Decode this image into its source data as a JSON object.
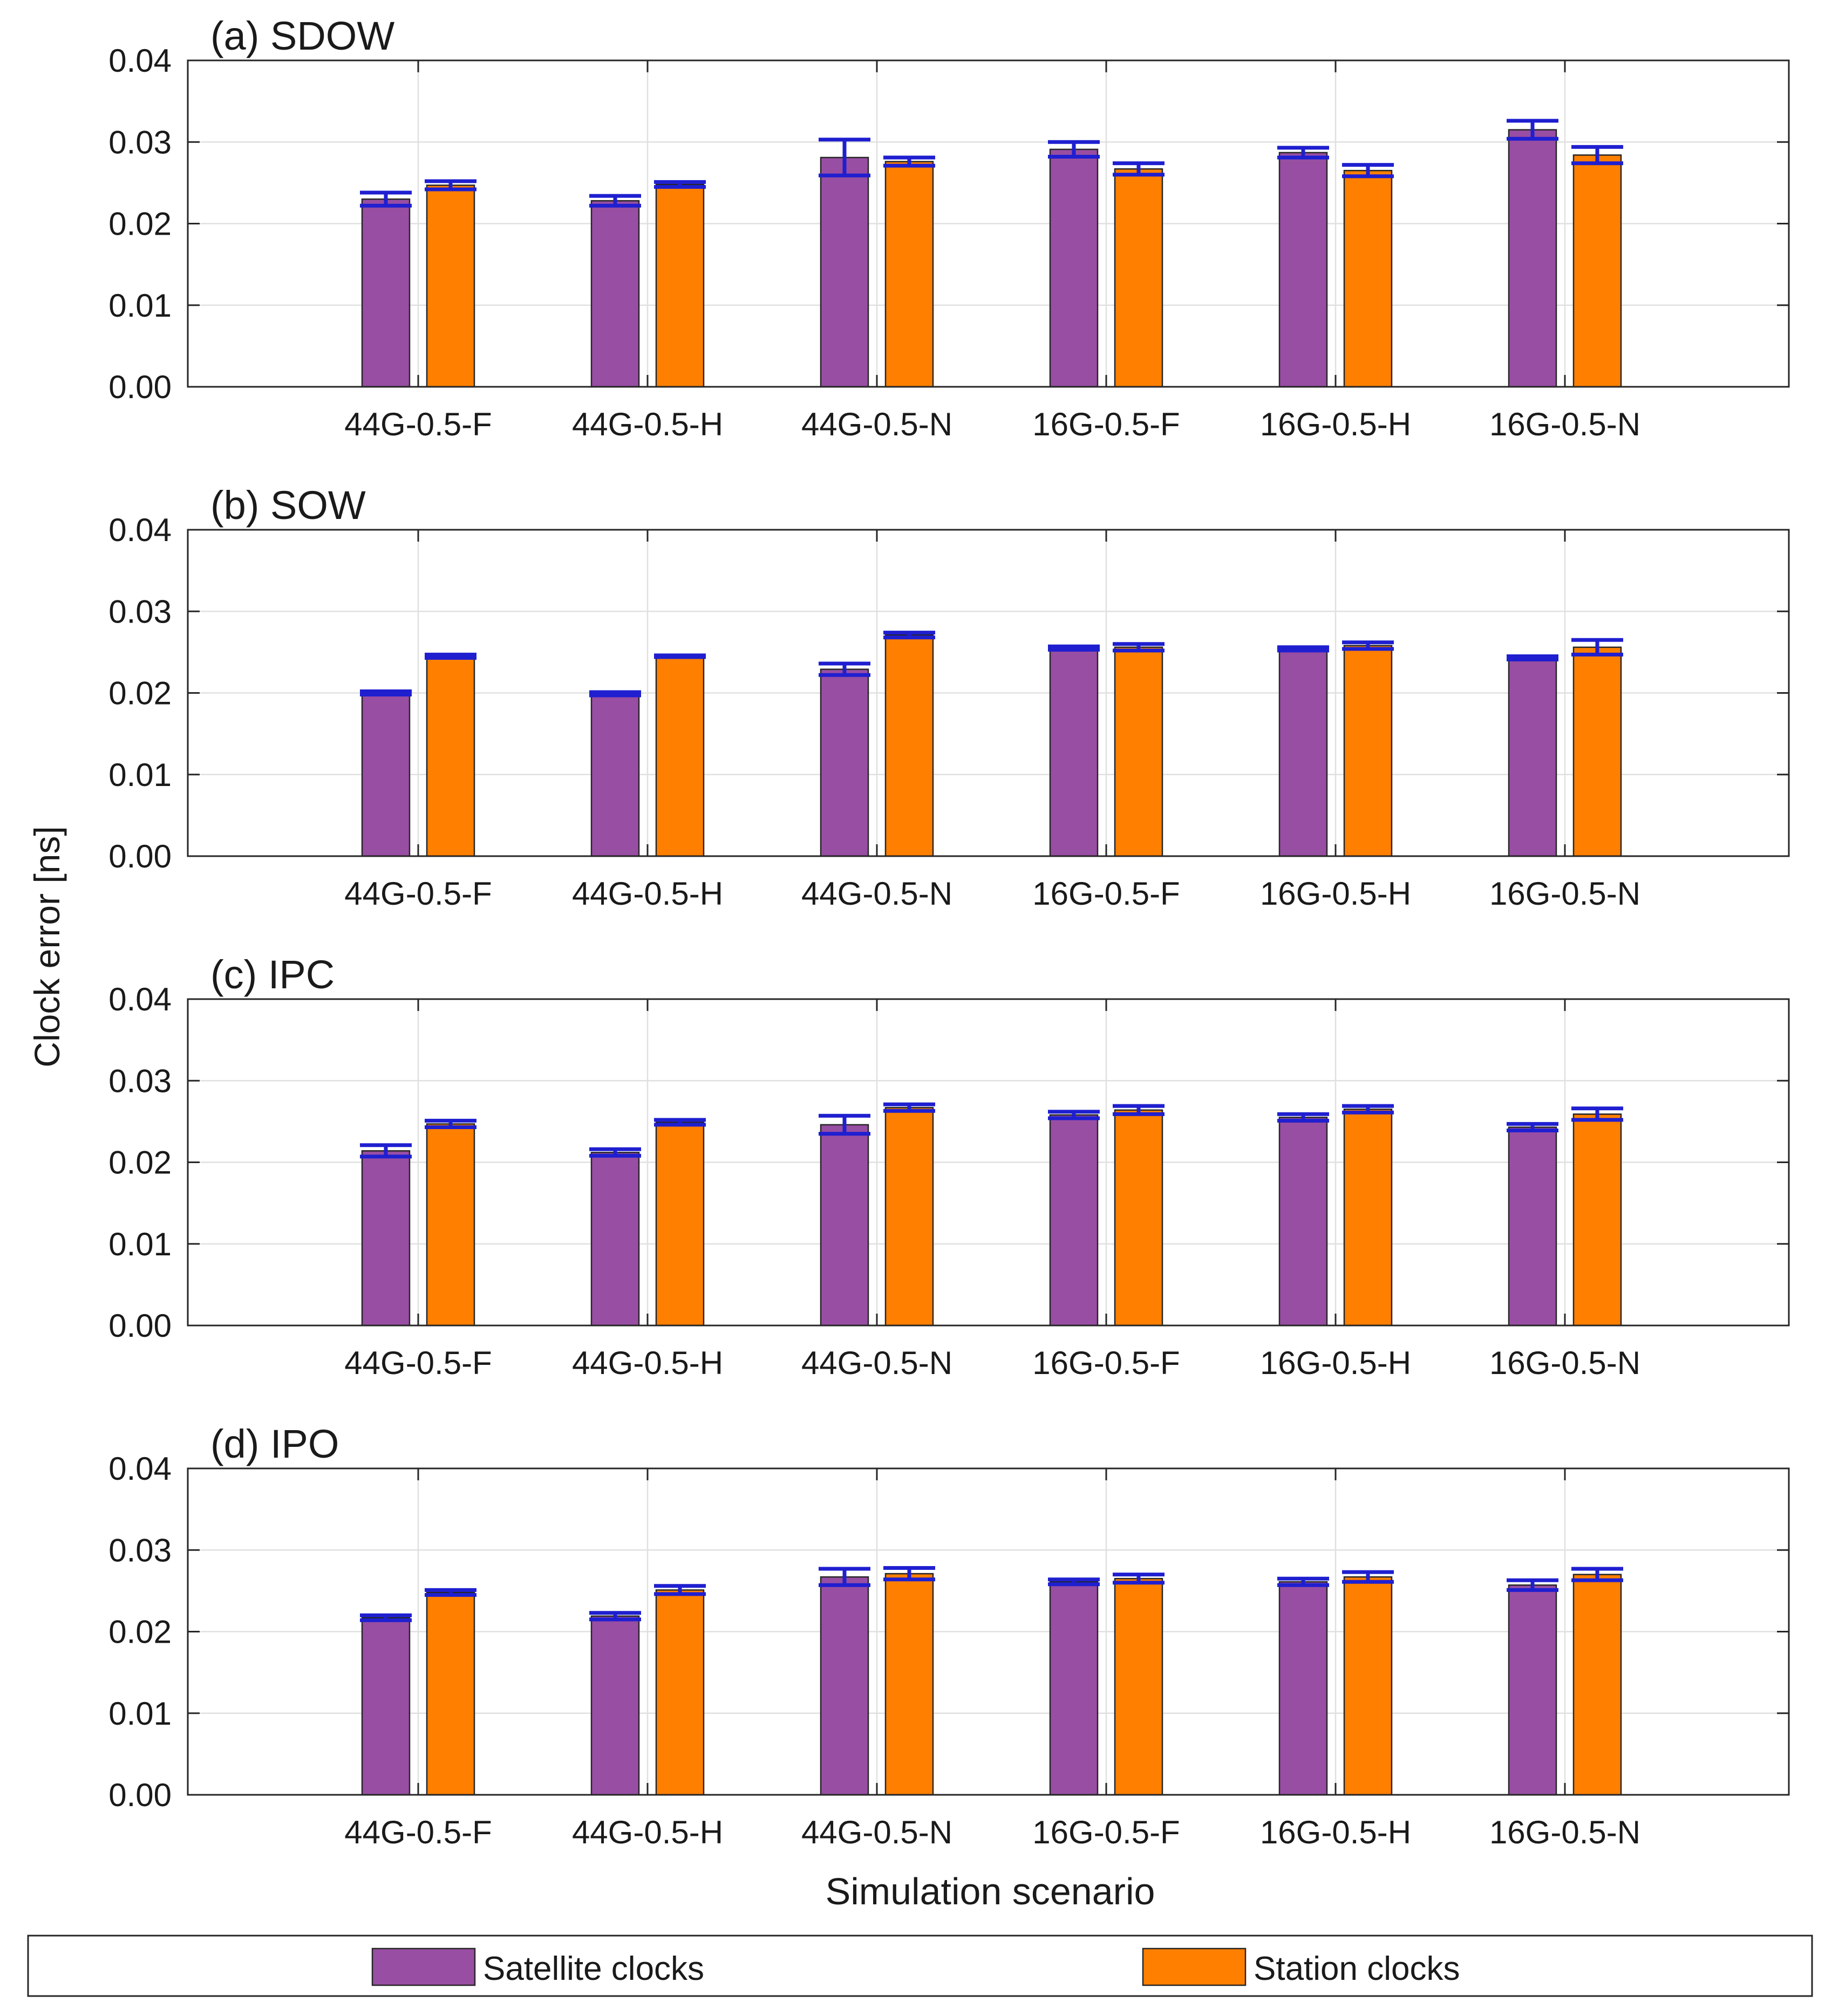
{
  "chart_data": [
    {
      "type": "bar",
      "title": "(a) SDOW",
      "categories": [
        "44G-0.5-F",
        "44G-0.5-H",
        "44G-0.5-N",
        "16G-0.5-F",
        "16G-0.5-H",
        "16G-0.5-N"
      ],
      "series": [
        {
          "name": "Satellite clocks",
          "values": [
            0.023,
            0.0228,
            0.0281,
            0.0291,
            0.0287,
            0.0315
          ],
          "errors": [
            0.0008,
            0.0006,
            0.0022,
            0.0009,
            0.0006,
            0.0011
          ]
        },
        {
          "name": "Station clocks",
          "values": [
            0.0247,
            0.0248,
            0.0276,
            0.0267,
            0.0265,
            0.0284
          ],
          "errors": [
            0.0005,
            0.0003,
            0.0005,
            0.0007,
            0.0007,
            0.001
          ]
        }
      ],
      "ylim": [
        0,
        0.04
      ],
      "yticks": [
        "0.00",
        "0.01",
        "0.02",
        "0.03",
        "0.04"
      ]
    },
    {
      "type": "bar",
      "title": "(b) SOW",
      "categories": [
        "44G-0.5-F",
        "44G-0.5-H",
        "44G-0.5-N",
        "16G-0.5-F",
        "16G-0.5-H",
        "16G-0.5-N"
      ],
      "series": [
        {
          "name": "Satellite clocks",
          "values": [
            0.02,
            0.0199,
            0.0229,
            0.0255,
            0.0254,
            0.0243
          ],
          "errors": [
            0.0002,
            0.0002,
            0.0007,
            0.0002,
            0.0002,
            0.0002
          ]
        },
        {
          "name": "Station clocks",
          "values": [
            0.0245,
            0.0245,
            0.0271,
            0.0256,
            0.0258,
            0.0256
          ],
          "errors": [
            0.0002,
            0.0001,
            0.0003,
            0.0004,
            0.0004,
            0.0009
          ]
        }
      ],
      "ylim": [
        0,
        0.04
      ],
      "yticks": [
        "0.00",
        "0.01",
        "0.02",
        "0.03",
        "0.04"
      ]
    },
    {
      "type": "bar",
      "title": "(c) IPC",
      "categories": [
        "44G-0.5-F",
        "44G-0.5-H",
        "44G-0.5-N",
        "16G-0.5-F",
        "16G-0.5-H",
        "16G-0.5-N"
      ],
      "series": [
        {
          "name": "Satellite clocks",
          "values": [
            0.0214,
            0.0212,
            0.0246,
            0.0258,
            0.0255,
            0.0243
          ],
          "errors": [
            0.0007,
            0.0004,
            0.0011,
            0.0004,
            0.0004,
            0.0004
          ]
        },
        {
          "name": "Station clocks",
          "values": [
            0.0247,
            0.0249,
            0.0267,
            0.0264,
            0.0265,
            0.0259
          ],
          "errors": [
            0.0004,
            0.0003,
            0.0004,
            0.0005,
            0.0004,
            0.0007
          ]
        }
      ],
      "ylim": [
        0,
        0.04
      ],
      "yticks": [
        "0.00",
        "0.01",
        "0.02",
        "0.03",
        "0.04"
      ]
    },
    {
      "type": "bar",
      "title": "(d) IPO",
      "categories": [
        "44G-0.5-F",
        "44G-0.5-H",
        "44G-0.5-N",
        "16G-0.5-F",
        "16G-0.5-H",
        "16G-0.5-N"
      ],
      "series": [
        {
          "name": "Satellite clocks",
          "values": [
            0.0217,
            0.0219,
            0.0267,
            0.0261,
            0.0261,
            0.0257
          ],
          "errors": [
            0.0003,
            0.0004,
            0.001,
            0.0003,
            0.0004,
            0.0006
          ]
        },
        {
          "name": "Station clocks",
          "values": [
            0.0248,
            0.0251,
            0.0271,
            0.0265,
            0.0267,
            0.027
          ],
          "errors": [
            0.0003,
            0.0005,
            0.0007,
            0.0005,
            0.0006,
            0.0007
          ]
        }
      ],
      "ylim": [
        0,
        0.04
      ],
      "yticks": [
        "0.00",
        "0.01",
        "0.02",
        "0.03",
        "0.04"
      ]
    }
  ],
  "labels": {
    "ylabel": "Clock error [ns]",
    "xlabel": "Simulation scenario"
  },
  "legend": {
    "placement": "bottom",
    "items": [
      {
        "name": "Satellite clocks",
        "color": "#984ea3"
      },
      {
        "name": "Station clocks",
        "color": "#ff7f00"
      }
    ]
  },
  "colors": {
    "error_bar": "#1f1fd0",
    "grid": "#e0e0e0",
    "axis": "#262626"
  }
}
